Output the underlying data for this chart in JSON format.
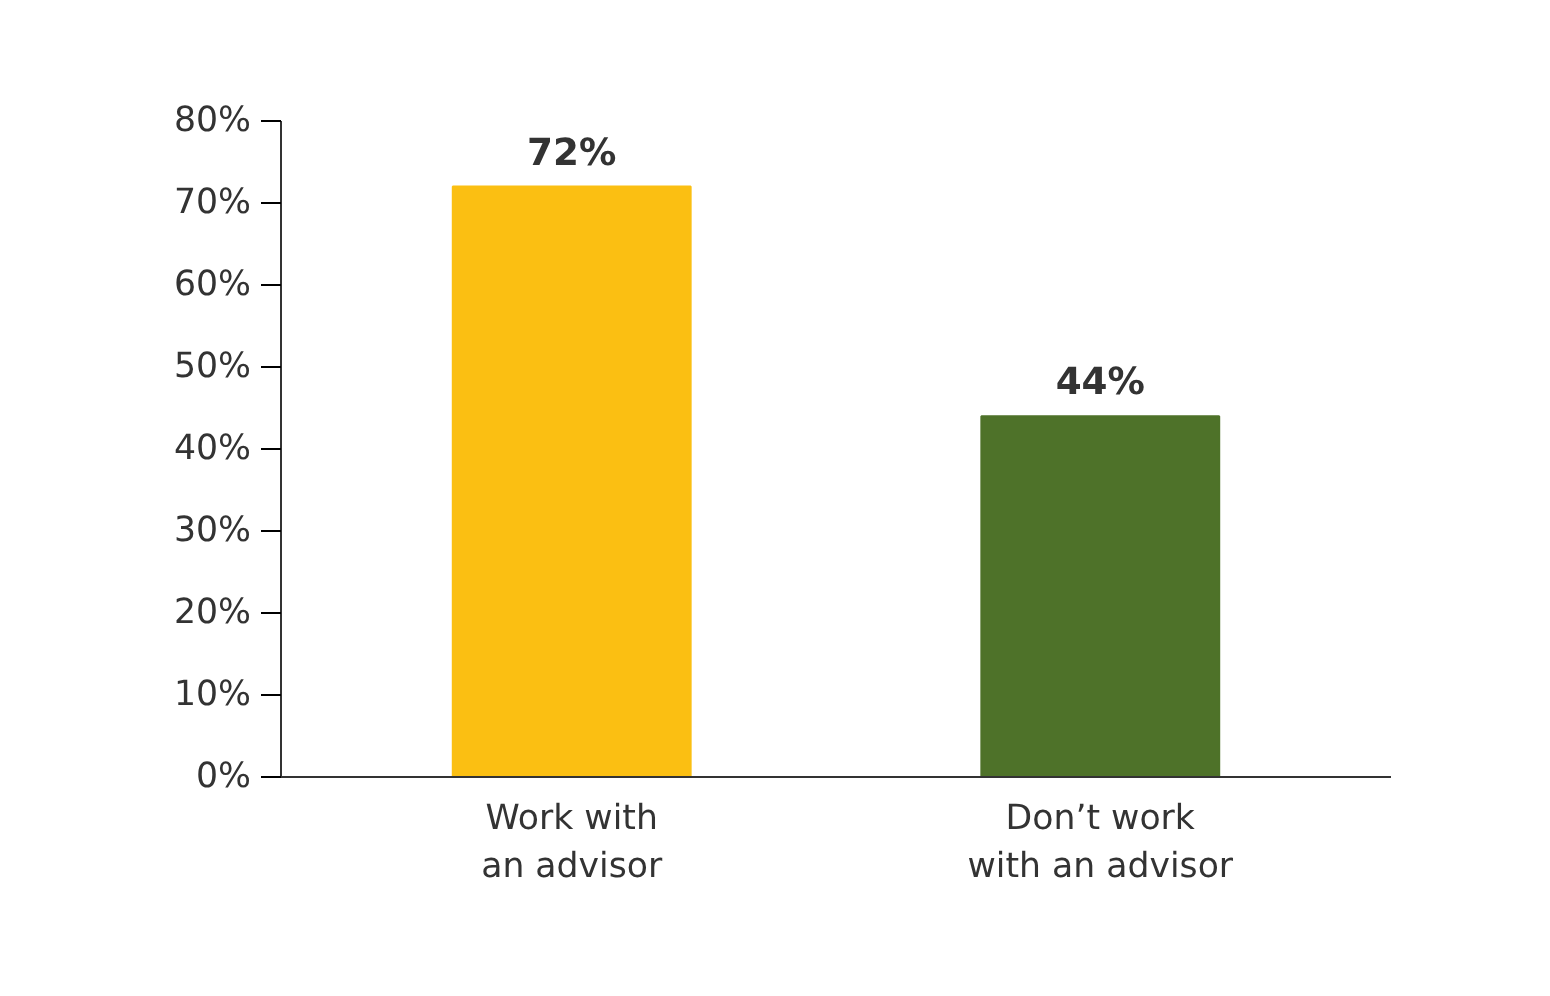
{
  "chart_data": {
    "type": "bar",
    "categories": [
      "Work with an advisor",
      "Don’t work with an advisor"
    ],
    "values": [
      72,
      44
    ],
    "colors": [
      "#fbbf12",
      "#4e7229"
    ],
    "value_labels": [
      "72%",
      "44%"
    ],
    "ylim": [
      0,
      80
    ],
    "yticks": [
      {
        "value": 0,
        "label": "0%"
      },
      {
        "value": 10,
        "label": "10%"
      },
      {
        "value": 20,
        "label": "20%"
      },
      {
        "value": 30,
        "label": "30%"
      },
      {
        "value": 40,
        "label": "40%"
      },
      {
        "value": 50,
        "label": "50%"
      },
      {
        "value": 60,
        "label": "60%"
      },
      {
        "value": 70,
        "label": "70%"
      },
      {
        "value": 80,
        "label": "80%"
      }
    ],
    "grid": false
  }
}
